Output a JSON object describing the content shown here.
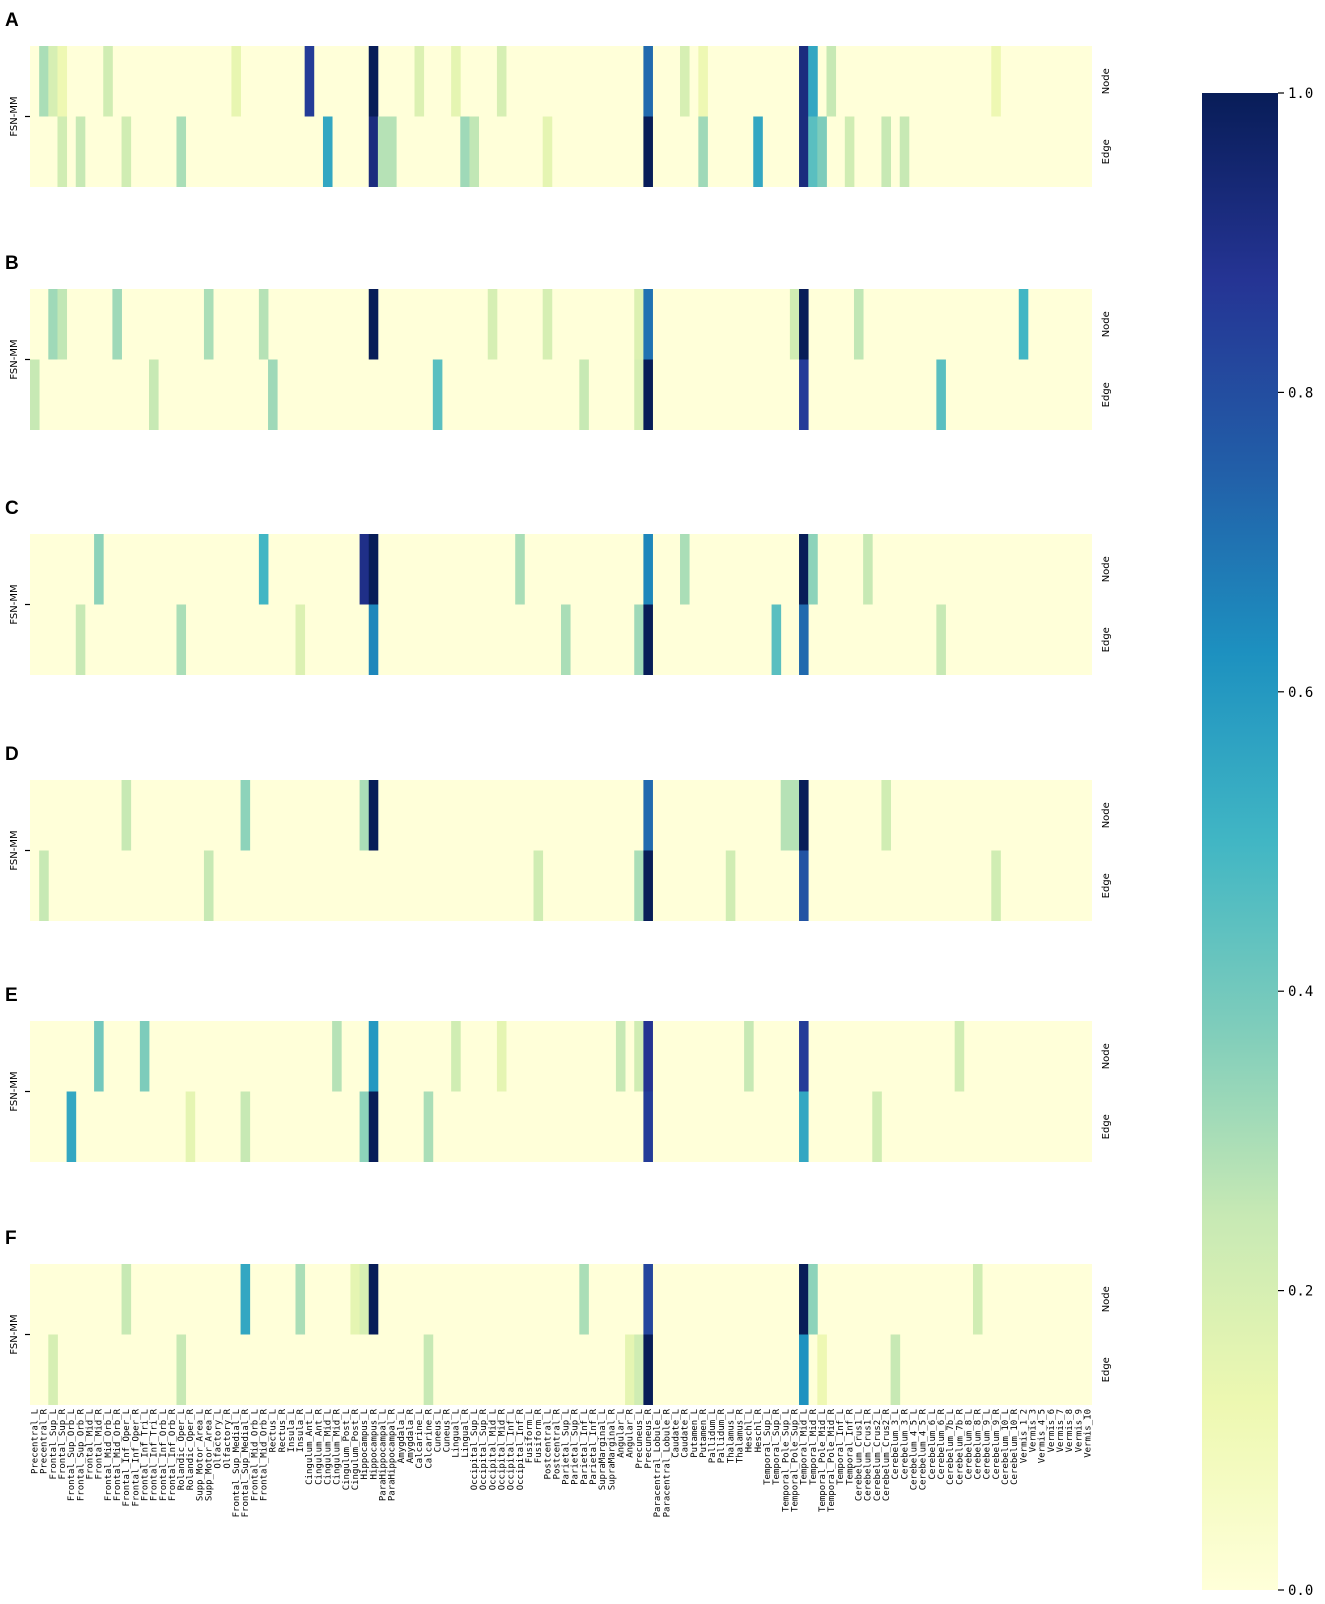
{
  "chart_data": {
    "type": "heatmap",
    "colormap": "YlGnBu",
    "row_labels": [
      "Node",
      "Edge"
    ],
    "ylabel": "FSN-MM",
    "regions": [
      "Precentral_L",
      "Precentral_R",
      "Frontal_Sup_L",
      "Frontal_Sup_R",
      "Frontal_Sup_Orb_L",
      "Frontal_Sup_Orb_R",
      "Frontal_Mid_L",
      "Frontal_Mid_R",
      "Frontal_Mid_Orb_L",
      "Frontal_Mid_Orb_R",
      "Frontal_Inf_Oper_L",
      "Frontal_Inf_Oper_R",
      "Frontal_Inf_Tri_L",
      "Frontal_Inf_Tri_R",
      "Frontal_Inf_Orb_L",
      "Frontal_Inf_Orb_R",
      "Rolandic_Oper_L",
      "Rolandic_Oper_R",
      "Supp_Motor_Area_L",
      "Supp_Motor_Area_R",
      "Olfactory_L",
      "Olfactory_R",
      "Frontal_Sup_Medial_L",
      "Frontal_Sup_Medial_R",
      "Frontal_Mid_Orb_L",
      "Frontal_Mid_Orb_R",
      "Rectus_L",
      "Rectus_R",
      "Insula_L",
      "Insula_R",
      "Cingulum_Ant_L",
      "Cingulum_Ant_R",
      "Cingulum_Mid_L",
      "Cingulum_Mid_R",
      "Cingulum_Post_L",
      "Cingulum_Post_R",
      "Hippocampus_L",
      "Hippocampus_R",
      "ParaHippocampal_L",
      "ParaHippocampal_R",
      "Amygdala_L",
      "Amygdala_R",
      "Calcarine_L",
      "Calcarine_R",
      "Cuneus_L",
      "Cuneus_R",
      "Lingual_L",
      "Lingual_R",
      "Occipital_Sup_L",
      "Occipital_Sup_R",
      "Occipital_Mid_L",
      "Occipital_Mid_R",
      "Occipital_Inf_L",
      "Occipital_Inf_R",
      "Fusiform_L",
      "Fusiform_R",
      "Postcentral_L",
      "Postcentral_R",
      "Parietal_Sup_L",
      "Parietal_Sup_R",
      "Parietal_Inf_L",
      "Parietal_Inf_R",
      "SupraMarginal_L",
      "SupraMarginal_R",
      "Angular_L",
      "Angular_R",
      "Precuneus_L",
      "Precuneus_R",
      "Paracentral_Lobule_L",
      "Paracentral_Lobule_R",
      "Caudate_L",
      "Caudate_R",
      "Putamen_L",
      "Putamen_R",
      "Pallidum_L",
      "Pallidum_R",
      "Thalamus_L",
      "Thalamus_R",
      "Heschl_L",
      "Heschl_R",
      "Temporal_Sup_L",
      "Temporal_Sup_R",
      "Temporal_Pole_Sup_L",
      "Temporal_Pole_Sup_R",
      "Temporal_Mid_L",
      "Temporal_Mid_R",
      "Temporal_Pole_Mid_L",
      "Temporal_Pole_Mid_R",
      "Temporal_Inf_L",
      "Temporal_Inf_R",
      "Cerebelum_Crus1_L",
      "Cerebelum_Crus1_R",
      "Cerebelum_Crus2_L",
      "Cerebelum_Crus2_R",
      "Cerebelum_3_L",
      "Cerebelum_3_R",
      "Cerebelum_4_5_L",
      "Cerebelum_4_5_R",
      "Cerebelum_6_L",
      "Cerebelum_6_R",
      "Cerebelum_7b_L",
      "Cerebelum_7b_R",
      "Cerebelum_8_L",
      "Cerebelum_8_R",
      "Cerebelum_9_L",
      "Cerebelum_9_R",
      "Cerebelum_10_L",
      "Cerebelum_10_R",
      "Vermis_1_2",
      "Vermis_3",
      "Vermis_4_5",
      "Vermis_6",
      "Vermis_7",
      "Vermis_8",
      "Vermis_9",
      "Vermis_10"
    ],
    "colorbar": {
      "min": 0.0,
      "max": 1.0,
      "ticks": [
        "0.0",
        "0.2",
        "0.4",
        "0.6",
        "0.8",
        "1.0"
      ]
    },
    "panels": [
      {
        "label": "A",
        "node": [
          [
            1,
            0.3
          ],
          [
            2,
            0.2
          ],
          [
            3,
            0.12
          ],
          [
            8,
            0.22
          ],
          [
            22,
            0.14
          ],
          [
            30,
            0.85
          ],
          [
            37,
            1.0
          ],
          [
            42,
            0.18
          ],
          [
            46,
            0.15
          ],
          [
            51,
            0.2
          ],
          [
            67,
            0.72
          ],
          [
            71,
            0.2
          ],
          [
            73,
            0.12
          ],
          [
            84,
            0.92
          ],
          [
            85,
            0.55
          ],
          [
            87,
            0.25
          ],
          [
            105,
            0.12
          ]
        ],
        "edge": [
          [
            3,
            0.22
          ],
          [
            5,
            0.25
          ],
          [
            10,
            0.22
          ],
          [
            16,
            0.3
          ],
          [
            32,
            0.55
          ],
          [
            37,
            0.92
          ],
          [
            38,
            0.28
          ],
          [
            39,
            0.28
          ],
          [
            47,
            0.32
          ],
          [
            48,
            0.26
          ],
          [
            56,
            0.15
          ],
          [
            67,
            1.0
          ],
          [
            73,
            0.32
          ],
          [
            79,
            0.55
          ],
          [
            84,
            0.92
          ],
          [
            85,
            0.45
          ],
          [
            86,
            0.38
          ],
          [
            89,
            0.22
          ],
          [
            93,
            0.25
          ],
          [
            95,
            0.25
          ]
        ]
      },
      {
        "label": "B",
        "node": [
          [
            2,
            0.32
          ],
          [
            3,
            0.26
          ],
          [
            9,
            0.32
          ],
          [
            19,
            0.3
          ],
          [
            25,
            0.28
          ],
          [
            37,
            1.0
          ],
          [
            50,
            0.2
          ],
          [
            56,
            0.2
          ],
          [
            66,
            0.18
          ],
          [
            67,
            0.7
          ],
          [
            83,
            0.22
          ],
          [
            84,
            1.0
          ],
          [
            90,
            0.26
          ],
          [
            108,
            0.5
          ]
        ],
        "edge": [
          [
            0,
            0.25
          ],
          [
            13,
            0.25
          ],
          [
            26,
            0.32
          ],
          [
            44,
            0.45
          ],
          [
            60,
            0.25
          ],
          [
            66,
            0.2
          ],
          [
            67,
            1.0
          ],
          [
            84,
            0.85
          ],
          [
            99,
            0.45
          ]
        ]
      },
      {
        "label": "C",
        "node": [
          [
            7,
            0.35
          ],
          [
            25,
            0.5
          ],
          [
            36,
            0.9
          ],
          [
            37,
            1.0
          ],
          [
            53,
            0.3
          ],
          [
            67,
            0.65
          ],
          [
            71,
            0.3
          ],
          [
            84,
            1.0
          ],
          [
            85,
            0.35
          ],
          [
            91,
            0.25
          ]
        ],
        "edge": [
          [
            5,
            0.25
          ],
          [
            16,
            0.3
          ],
          [
            29,
            0.18
          ],
          [
            37,
            0.65
          ],
          [
            58,
            0.3
          ],
          [
            66,
            0.32
          ],
          [
            67,
            1.0
          ],
          [
            81,
            0.45
          ],
          [
            84,
            0.72
          ],
          [
            99,
            0.25
          ]
        ]
      },
      {
        "label": "D",
        "node": [
          [
            10,
            0.25
          ],
          [
            23,
            0.35
          ],
          [
            36,
            0.3
          ],
          [
            37,
            1.0
          ],
          [
            67,
            0.72
          ],
          [
            82,
            0.28
          ],
          [
            83,
            0.28
          ],
          [
            84,
            1.0
          ],
          [
            93,
            0.22
          ]
        ],
        "edge": [
          [
            1,
            0.25
          ],
          [
            19,
            0.25
          ],
          [
            55,
            0.22
          ],
          [
            66,
            0.3
          ],
          [
            67,
            1.0
          ],
          [
            76,
            0.22
          ],
          [
            84,
            0.78
          ],
          [
            105,
            0.22
          ]
        ]
      },
      {
        "label": "E",
        "node": [
          [
            7,
            0.4
          ],
          [
            12,
            0.38
          ],
          [
            33,
            0.28
          ],
          [
            37,
            0.6
          ],
          [
            46,
            0.22
          ],
          [
            51,
            0.15
          ],
          [
            64,
            0.25
          ],
          [
            66,
            0.22
          ],
          [
            67,
            0.88
          ],
          [
            78,
            0.25
          ],
          [
            84,
            0.85
          ],
          [
            101,
            0.22
          ]
        ],
        "edge": [
          [
            4,
            0.55
          ],
          [
            17,
            0.15
          ],
          [
            23,
            0.25
          ],
          [
            36,
            0.35
          ],
          [
            37,
            1.0
          ],
          [
            43,
            0.3
          ],
          [
            67,
            0.85
          ],
          [
            84,
            0.55
          ],
          [
            92,
            0.22
          ]
        ]
      },
      {
        "label": "F",
        "node": [
          [
            10,
            0.25
          ],
          [
            23,
            0.55
          ],
          [
            29,
            0.3
          ],
          [
            35,
            0.15
          ],
          [
            36,
            0.2
          ],
          [
            37,
            1.0
          ],
          [
            60,
            0.3
          ],
          [
            67,
            0.82
          ],
          [
            84,
            1.0
          ],
          [
            85,
            0.35
          ],
          [
            103,
            0.22
          ]
        ],
        "edge": [
          [
            2,
            0.2
          ],
          [
            16,
            0.25
          ],
          [
            43,
            0.25
          ],
          [
            65,
            0.15
          ],
          [
            66,
            0.22
          ],
          [
            67,
            1.0
          ],
          [
            84,
            0.62
          ],
          [
            86,
            0.12
          ],
          [
            94,
            0.25
          ]
        ]
      }
    ]
  }
}
